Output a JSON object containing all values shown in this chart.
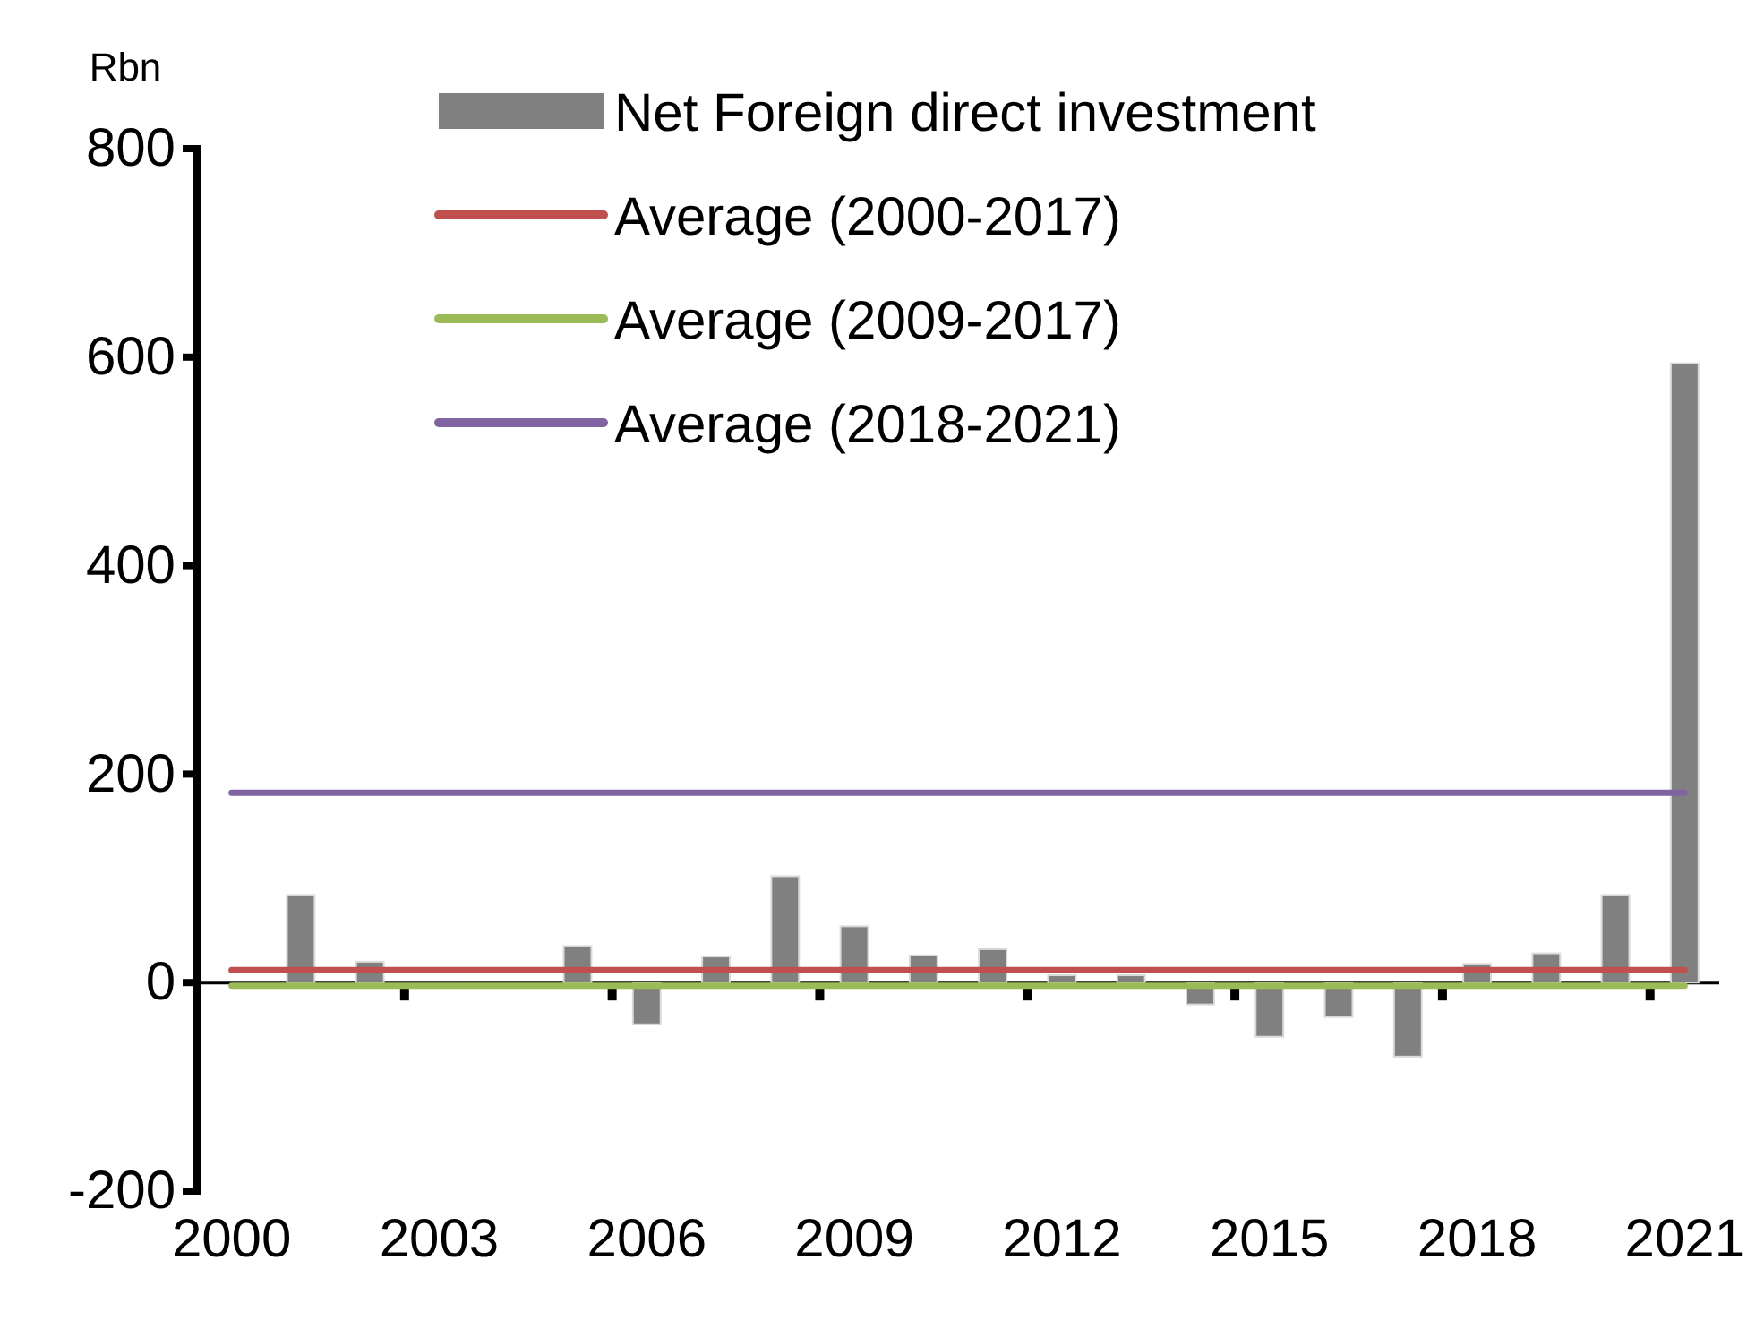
{
  "chart_data": {
    "type": "bar",
    "ylabel": "Rbn",
    "categories": [
      "2000",
      null,
      null,
      "2003",
      null,
      null,
      "2006",
      null,
      null,
      "2009",
      null,
      null,
      "2012",
      null,
      null,
      "2015",
      null,
      null,
      "2018",
      null,
      null,
      "2021"
    ],
    "series": [
      {
        "name": "Net Foreign direct investment",
        "color": "#808080",
        "values": [
          0,
          84,
          20,
          0,
          0,
          35,
          -40,
          25,
          102,
          54,
          26,
          32,
          7,
          7,
          -21,
          -52,
          -33,
          -71,
          18,
          28,
          84,
          594
        ]
      },
      {
        "name": "Average (2000-2017)",
        "type": "line",
        "color": "#c0504d",
        "values": [
          12,
          12,
          12,
          12,
          12,
          12,
          12,
          12,
          12,
          12,
          12,
          12,
          12,
          12,
          12,
          12,
          12,
          12,
          12,
          12,
          12,
          12
        ]
      },
      {
        "name": "Average (2009-2017)",
        "type": "line",
        "color": "#9bbb59",
        "values": [
          -3,
          -3,
          -3,
          -3,
          -3,
          -3,
          -3,
          -3,
          -3,
          -3,
          -3,
          -3,
          -3,
          -3,
          -3,
          -3,
          -3,
          -3,
          -3,
          -3,
          -3,
          -3
        ]
      },
      {
        "name": "Average (2018-2021)",
        "type": "line",
        "color": "#8064a2",
        "values": [
          182,
          182,
          182,
          182,
          182,
          182,
          182,
          182,
          182,
          182,
          182,
          182,
          182,
          182,
          182,
          182,
          182,
          182,
          182,
          182,
          182,
          182
        ]
      }
    ],
    "ylim": [
      -200,
      800
    ],
    "yticks": [
      -200,
      0,
      200,
      400,
      600,
      800
    ],
    "legend": "top"
  }
}
